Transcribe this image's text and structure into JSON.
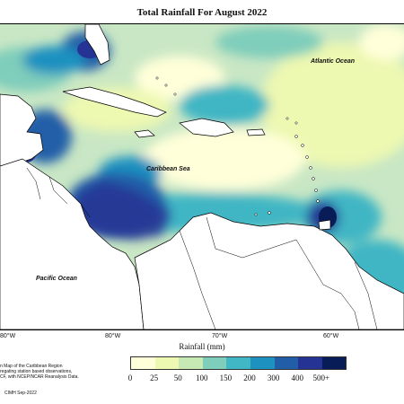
{
  "title": "Total Rainfall For August 2022",
  "places": {
    "atlantic": "Atlantic Ocean",
    "caribbean": "Caribbean Sea",
    "pacific": "Pacific Ocean"
  },
  "longitude_ticks": [
    "80°W",
    "80°W",
    "70°W",
    "60°W"
  ],
  "axis_title": "Rainfall (mm)",
  "legend": {
    "labels": [
      "0",
      "25",
      "50",
      "100",
      "150",
      "200",
      "300",
      "400",
      "500+"
    ],
    "colors": [
      "#ffffd9",
      "#edf8b1",
      "#c7e9b4",
      "#7fcdbb",
      "#41b6c4",
      "#1d91c0",
      "#225ea8",
      "#253494",
      "#081d58"
    ]
  },
  "note_lines": [
    "n Map of the Caribbean Region",
    "regating station based observations,",
    "CF, with NCEP/NCAR Reanalysis Data."
  ],
  "credit": "CIMH Sep-2022",
  "colors": {
    "land": "#ffffff",
    "ocean_base": "#c9e7c4",
    "border": "#000000"
  }
}
